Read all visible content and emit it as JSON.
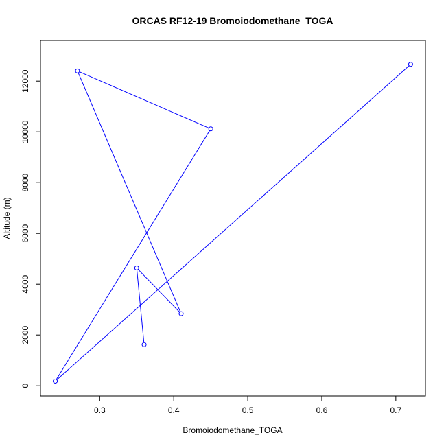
{
  "chart_data": {
    "type": "line",
    "title": "ORCAS RF12-19 Bromoiodomethane_TOGA",
    "xlabel": "Bromoiodomethane_TOGA",
    "ylabel": "Altitude (m)",
    "xlim": [
      0.22,
      0.74
    ],
    "ylim": [
      -400,
      13600
    ],
    "x_ticks": [
      0.3,
      0.4,
      0.5,
      0.6,
      0.7
    ],
    "y_ticks": [
      0,
      2000,
      4000,
      6000,
      8000,
      10000,
      12000
    ],
    "x_tick_labels": [
      "0.3",
      "0.4",
      "0.5",
      "0.6",
      "0.7"
    ],
    "y_tick_labels": [
      "0",
      "2000",
      "4000",
      "6000",
      "8000",
      "10000",
      "12000"
    ],
    "grid": false,
    "series": [
      {
        "color": "#0000ff",
        "x": [
          0.36,
          0.35,
          0.41,
          0.27,
          0.45,
          0.24,
          0.72
        ],
        "y": [
          1620,
          4640,
          2840,
          12400,
          10120,
          180,
          12660
        ]
      }
    ]
  }
}
